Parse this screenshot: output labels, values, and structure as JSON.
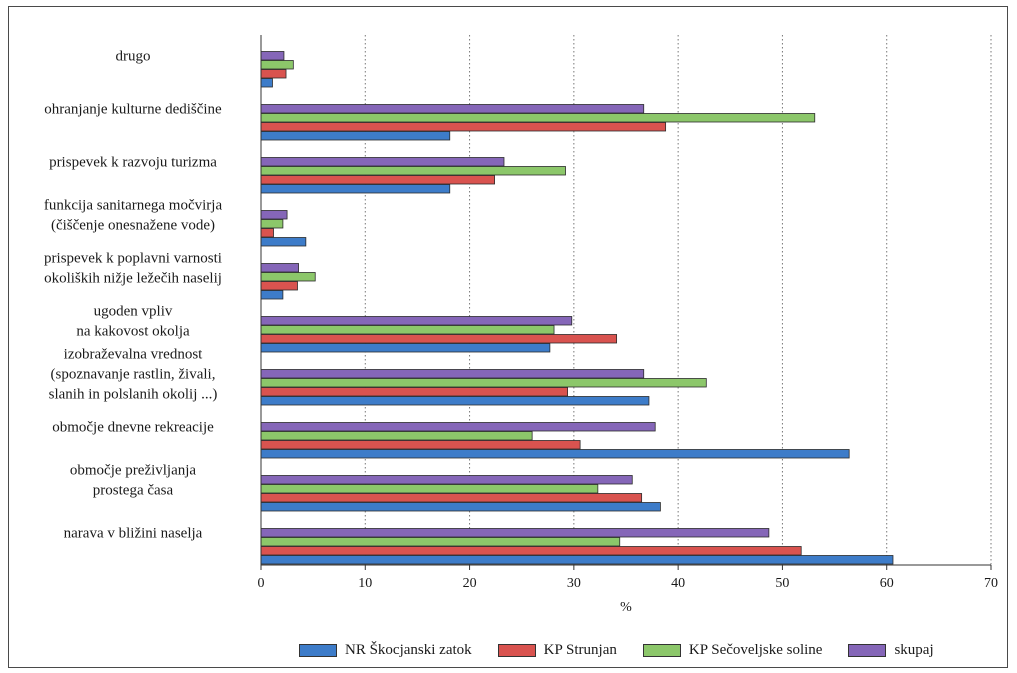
{
  "chart_data": {
    "type": "bar",
    "orientation": "horizontal",
    "categories": [
      [
        "drugo"
      ],
      [
        "ohranjanje kulturne dediščine"
      ],
      [
        "prispevek k razvoju turizma"
      ],
      [
        "funkcija sanitarnega močvirja",
        "(čiščenje onesnažene vode)"
      ],
      [
        "prispevek k poplavni varnosti",
        "okoliških nižje ležečih naselij"
      ],
      [
        "ugoden vpliv",
        "na kakovost okolja"
      ],
      [
        "izobraževalna vrednost",
        "(spoznavanje rastlin, živali,",
        "slanih in polslanih okolij ...)"
      ],
      [
        "območje dnevne rekreacije"
      ],
      [
        "območje preživljanja",
        "prostega časa"
      ],
      [
        "narava v bližini naselja"
      ]
    ],
    "series": [
      {
        "name": "NR Škocjanski zatok",
        "color": "#3d7cc9",
        "values": [
          1.1,
          18.1,
          18.1,
          4.3,
          2.1,
          27.7,
          37.2,
          56.4,
          38.3,
          60.6
        ]
      },
      {
        "name": "KP Strunjan",
        "color": "#d9534f",
        "values": [
          2.4,
          38.8,
          22.4,
          1.2,
          3.5,
          34.1,
          29.4,
          30.6,
          36.5,
          51.8
        ]
      },
      {
        "name": "KP Sečoveljske soline",
        "color": "#8cc76a",
        "values": [
          3.1,
          53.1,
          29.2,
          2.1,
          5.2,
          28.1,
          42.7,
          26.0,
          32.3,
          34.4
        ]
      },
      {
        "name": "skupaj",
        "color": "#8566b8",
        "values": [
          2.2,
          36.7,
          23.3,
          2.5,
          3.6,
          29.8,
          36.7,
          37.8,
          35.6,
          48.7
        ]
      }
    ],
    "x_ticks": [
      "0",
      "10",
      "20",
      "30",
      "40",
      "50",
      "60",
      "70"
    ],
    "xlim": [
      0,
      70
    ],
    "xlabel": "%",
    "grid": "vertical dotted",
    "legend_position": "bottom"
  }
}
